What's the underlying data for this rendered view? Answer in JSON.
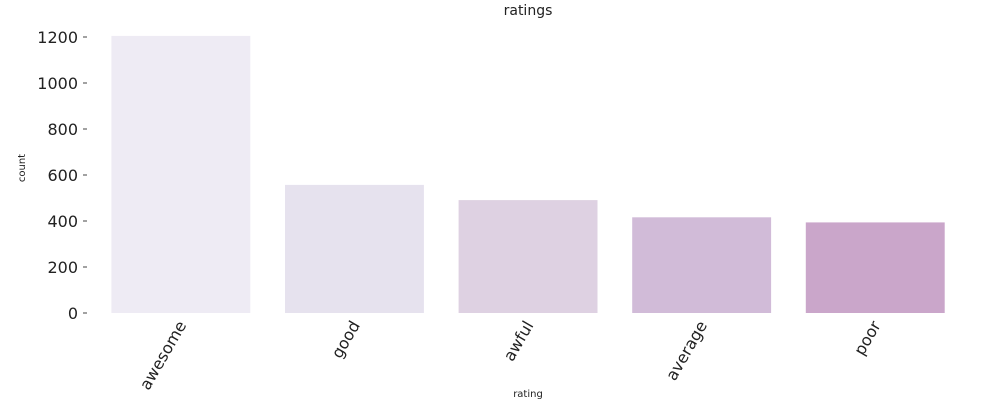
{
  "chart_data": {
    "type": "bar",
    "title": "ratings",
    "xlabel": "rating",
    "ylabel": "count",
    "categories": [
      "awesome",
      "good",
      "awful",
      "average",
      "poor"
    ],
    "values": [
      1205,
      557,
      491,
      416,
      394
    ],
    "ylim": [
      0,
      1200
    ],
    "yticks": [
      0,
      200,
      400,
      600,
      800,
      1000,
      1200
    ],
    "grid": false,
    "colors": [
      "#eeebf4",
      "#e6e2ee",
      "#ded1e2",
      "#d1bbd8",
      "#caa6ca"
    ]
  }
}
